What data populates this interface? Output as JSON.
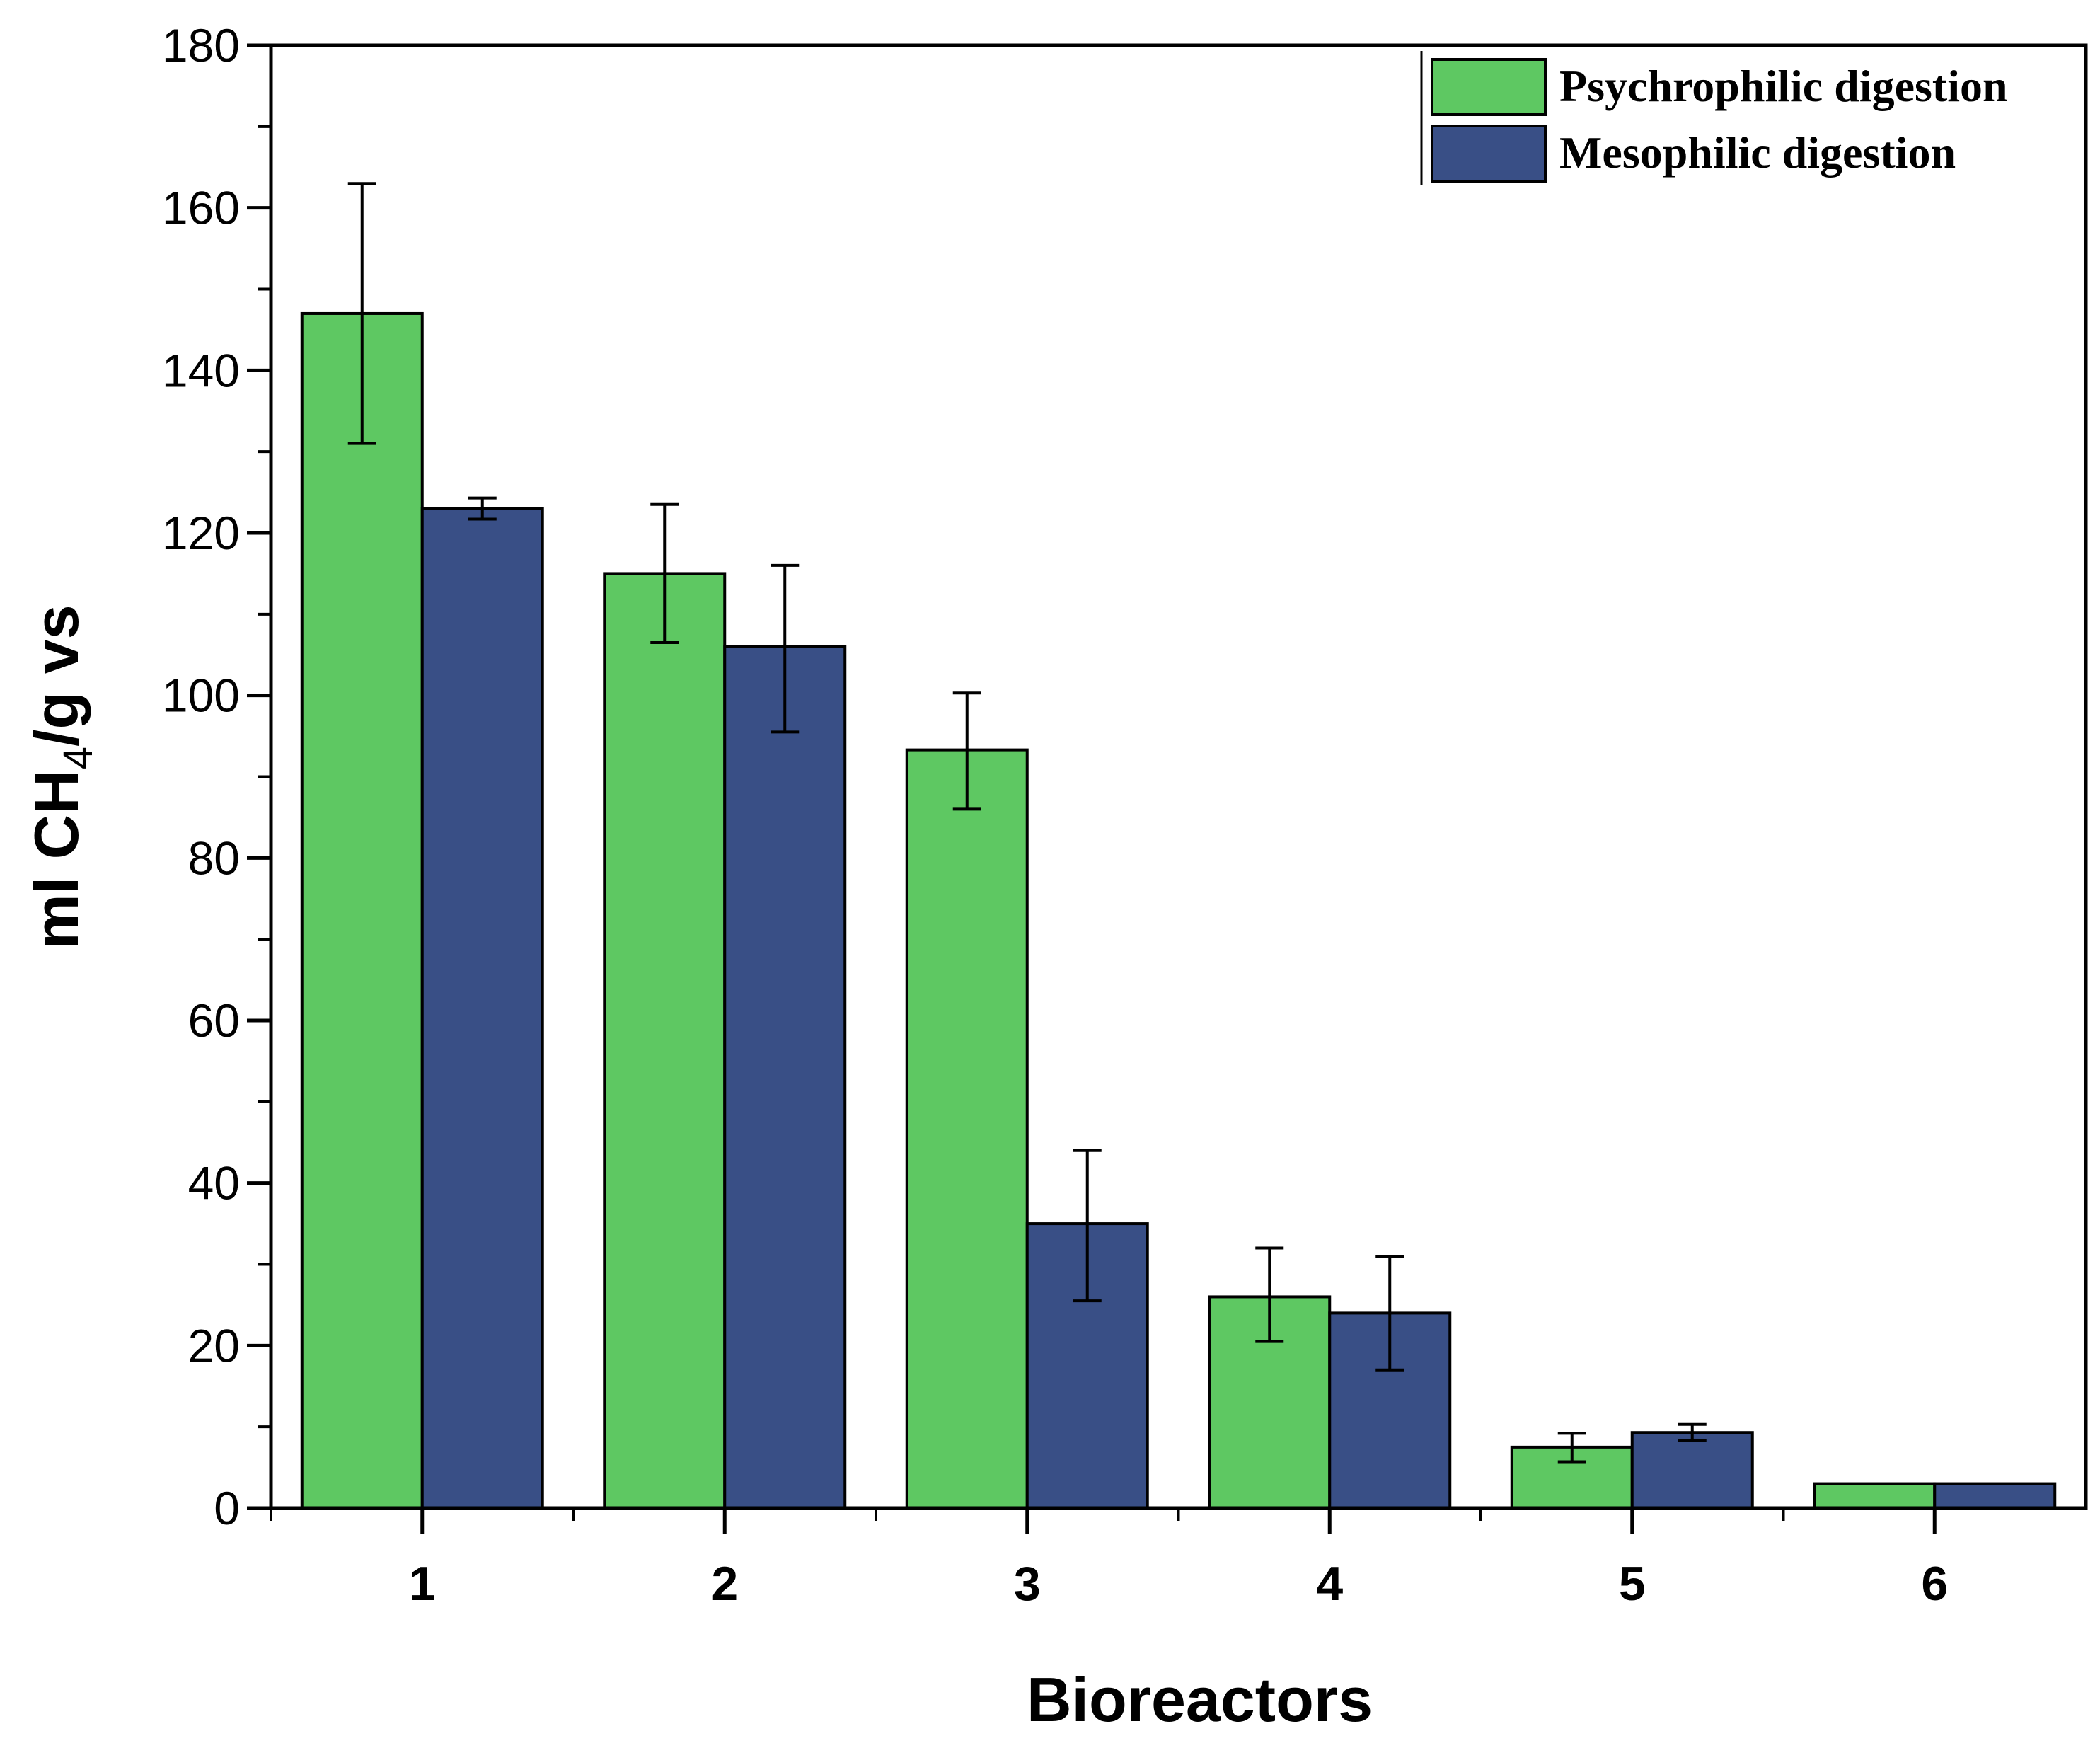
{
  "chart_data": {
    "type": "bar",
    "title": "",
    "xlabel": "Bioreactors",
    "ylabel": {
      "main": "ml CH",
      "subscript": "4",
      "rest": "/g vs"
    },
    "categories": [
      "1",
      "2",
      "3",
      "4",
      "5",
      "6"
    ],
    "ylim": [
      0,
      180
    ],
    "yticks": [
      0,
      20,
      40,
      60,
      80,
      100,
      120,
      140,
      160,
      180
    ],
    "legend_position": "top-right",
    "series": [
      {
        "name": "Psychrophilic digestion",
        "color": "#5ec862",
        "values": [
          147,
          115,
          93.3,
          26,
          7.5,
          3
        ],
        "error_low": [
          131,
          106.5,
          86,
          20.5,
          5.7,
          3
        ],
        "error_high": [
          163,
          123.5,
          100.3,
          32,
          9.2,
          3
        ]
      },
      {
        "name": "Mesophilic digestion",
        "color": "#394f86",
        "values": [
          123,
          106,
          35,
          24,
          9.3,
          3
        ],
        "error_low": [
          121.7,
          95.5,
          25.5,
          17,
          8.3,
          3
        ],
        "error_high": [
          124.3,
          116,
          44,
          31,
          10.3,
          3
        ]
      }
    ]
  }
}
